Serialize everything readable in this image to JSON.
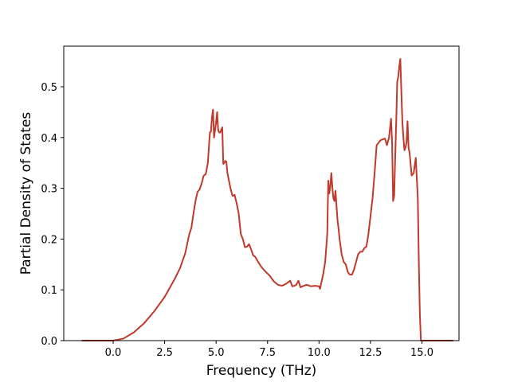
{
  "chart_data": {
    "type": "line",
    "title": "",
    "xlabel": "Frequency (THz)",
    "ylabel": "Partial Density of States",
    "xlim": [
      -2.4,
      16.8
    ],
    "ylim": [
      0.0,
      0.58
    ],
    "xticks": [
      0.0,
      2.5,
      5.0,
      7.5,
      10.0,
      12.5,
      15.0
    ],
    "xtick_labels": [
      "0.0",
      "2.5",
      "5.0",
      "7.5",
      "10.0",
      "12.5",
      "15.0"
    ],
    "yticks": [
      0.0,
      0.1,
      0.2,
      0.3,
      0.4,
      0.5
    ],
    "ytick_labels": [
      "0.0",
      "0.1",
      "0.2",
      "0.3",
      "0.4",
      "0.5"
    ],
    "grid": false,
    "legend": "none",
    "series": [
      {
        "color": "#c0392b",
        "x": [
          -1.5,
          -1.0,
          -0.5,
          0.0,
          0.5,
          1.0,
          1.5,
          2.0,
          2.5,
          3.0,
          3.25,
          3.5,
          3.7,
          3.8,
          3.9,
          4.0,
          4.1,
          4.2,
          4.3,
          4.4,
          4.5,
          4.6,
          4.7,
          4.75,
          4.8,
          4.85,
          4.9,
          5.0,
          5.05,
          5.1,
          5.15,
          5.2,
          5.3,
          5.35,
          5.4,
          5.45,
          5.5,
          5.55,
          5.6,
          5.7,
          5.8,
          5.9,
          6.0,
          6.1,
          6.2,
          6.3,
          6.4,
          6.5,
          6.6,
          6.7,
          6.8,
          6.9,
          7.0,
          7.2,
          7.4,
          7.6,
          7.8,
          8.0,
          8.2,
          8.4,
          8.6,
          8.7,
          8.8,
          8.9,
          9.0,
          9.1,
          9.2,
          9.4,
          9.6,
          9.8,
          10.0,
          10.05,
          10.1,
          10.2,
          10.3,
          10.4,
          10.45,
          10.5,
          10.55,
          10.6,
          10.65,
          10.7,
          10.75,
          10.8,
          10.85,
          10.9,
          10.95,
          11.0,
          11.1,
          11.2,
          11.3,
          11.4,
          11.5,
          11.6,
          11.7,
          11.8,
          11.9,
          12.0,
          12.1,
          12.2,
          12.3,
          12.4,
          12.5,
          12.6,
          12.7,
          12.8,
          13.0,
          13.2,
          13.3,
          13.4,
          13.5,
          13.55,
          13.6,
          13.65,
          13.7,
          13.75,
          13.8,
          13.85,
          13.9,
          13.95,
          14.0,
          14.05,
          14.1,
          14.15,
          14.2,
          14.25,
          14.3,
          14.35,
          14.4,
          14.5,
          14.6,
          14.7,
          14.8,
          14.85,
          14.9,
          14.95,
          15.0,
          15.5,
          16.0,
          16.5
        ],
        "y": [
          0.0,
          0.0,
          0.0,
          0.0,
          0.004,
          0.016,
          0.034,
          0.058,
          0.086,
          0.122,
          0.143,
          0.172,
          0.21,
          0.222,
          0.25,
          0.275,
          0.293,
          0.298,
          0.31,
          0.325,
          0.328,
          0.35,
          0.41,
          0.412,
          0.44,
          0.455,
          0.4,
          0.43,
          0.45,
          0.415,
          0.41,
          0.41,
          0.42,
          0.348,
          0.35,
          0.354,
          0.352,
          0.33,
          0.32,
          0.3,
          0.285,
          0.287,
          0.27,
          0.25,
          0.21,
          0.2,
          0.184,
          0.185,
          0.19,
          0.18,
          0.168,
          0.165,
          0.158,
          0.145,
          0.136,
          0.128,
          0.117,
          0.11,
          0.108,
          0.112,
          0.118,
          0.107,
          0.108,
          0.11,
          0.118,
          0.105,
          0.107,
          0.11,
          0.107,
          0.108,
          0.107,
          0.102,
          0.112,
          0.13,
          0.155,
          0.21,
          0.315,
          0.29,
          0.305,
          0.33,
          0.3,
          0.28,
          0.275,
          0.295,
          0.265,
          0.237,
          0.22,
          0.2,
          0.17,
          0.155,
          0.15,
          0.135,
          0.13,
          0.13,
          0.14,
          0.155,
          0.17,
          0.175,
          0.175,
          0.182,
          0.185,
          0.21,
          0.245,
          0.28,
          0.33,
          0.385,
          0.395,
          0.398,
          0.385,
          0.4,
          0.437,
          0.39,
          0.275,
          0.285,
          0.36,
          0.43,
          0.51,
          0.52,
          0.54,
          0.555,
          0.49,
          0.43,
          0.4,
          0.375,
          0.38,
          0.39,
          0.432,
          0.38,
          0.37,
          0.325,
          0.33,
          0.36,
          0.28,
          0.15,
          0.05,
          0.0,
          0.0,
          0.0,
          0.0,
          0.0
        ]
      }
    ]
  }
}
